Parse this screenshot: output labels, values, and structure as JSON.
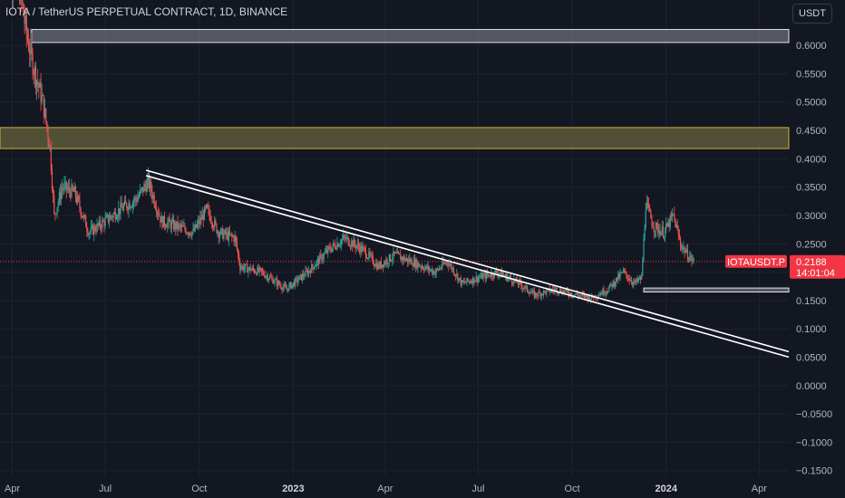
{
  "header": {
    "title": "IOTA / TetherUS PERPETUAL CONTRACT, 1D, BINANCE",
    "currency": "USDT"
  },
  "colors": {
    "background": "#131722",
    "grid": "#1f2330",
    "up": "#26a69a",
    "down": "#ef5350",
    "price_label": "#f23645",
    "resistance_zone_fill": "#5d5a3a",
    "resistance_zone_border": "#c9b33a",
    "grey_zone": "#8a8d96"
  },
  "price_label": {
    "symbol": "IOTAUSDT.P",
    "price": "0.2188",
    "countdown": "14:01:04"
  },
  "chart_data": {
    "type": "candlestick",
    "y_axis_labels": [
      "0.6000",
      "0.5500",
      "0.5000",
      "0.4500",
      "0.4000",
      "0.3500",
      "0.3000",
      "0.2500",
      "0.2000",
      "0.1500",
      "0.1000",
      "0.0500",
      "0.0000",
      "−0.0500",
      "−0.1000",
      "−0.1500"
    ],
    "y_axis_values": [
      0.6,
      0.55,
      0.5,
      0.45,
      0.4,
      0.35,
      0.3,
      0.25,
      0.2,
      0.15,
      0.1,
      0.05,
      0.0,
      -0.05,
      -0.1,
      -0.15
    ],
    "ylim": [
      -0.16,
      0.68
    ],
    "x_axis_labels": [
      "Apr",
      "Jul",
      "Oct",
      "2023",
      "Apr",
      "Jul",
      "Oct",
      "2024",
      "Apr"
    ],
    "x_axis_bold": [
      false,
      false,
      false,
      true,
      false,
      false,
      false,
      true,
      false
    ],
    "x_axis_dates": [
      "2022-04-01",
      "2022-07-01",
      "2022-10-01",
      "2023-01-01",
      "2023-04-01",
      "2023-07-01",
      "2023-10-01",
      "2024-01-01",
      "2024-04-01"
    ],
    "xlim": [
      "2022-03-20",
      "2024-04-30"
    ],
    "last_price": 0.2188,
    "path_points": [
      [
        "2022-03-25",
        0.74
      ],
      [
        "2022-04-08",
        0.7
      ],
      [
        "2022-04-15",
        0.62
      ],
      [
        "2022-04-22",
        0.56
      ],
      [
        "2022-05-01",
        0.5
      ],
      [
        "2022-05-08",
        0.42
      ],
      [
        "2022-05-12",
        0.3
      ],
      [
        "2022-05-20",
        0.35
      ],
      [
        "2022-06-01",
        0.34
      ],
      [
        "2022-06-15",
        0.27
      ],
      [
        "2022-07-01",
        0.29
      ],
      [
        "2022-07-15",
        0.31
      ],
      [
        "2022-08-01",
        0.33
      ],
      [
        "2022-08-12",
        0.36
      ],
      [
        "2022-08-25",
        0.29
      ],
      [
        "2022-09-10",
        0.28
      ],
      [
        "2022-09-25",
        0.27
      ],
      [
        "2022-10-08",
        0.31
      ],
      [
        "2022-10-20",
        0.27
      ],
      [
        "2022-11-05",
        0.26
      ],
      [
        "2022-11-10",
        0.21
      ],
      [
        "2022-12-01",
        0.2
      ],
      [
        "2022-12-25",
        0.17
      ],
      [
        "2023-01-15",
        0.2
      ],
      [
        "2023-02-05",
        0.24
      ],
      [
        "2023-02-20",
        0.26
      ],
      [
        "2023-03-10",
        0.24
      ],
      [
        "2023-03-25",
        0.21
      ],
      [
        "2023-04-10",
        0.23
      ],
      [
        "2023-04-25",
        0.22
      ],
      [
        "2023-05-20",
        0.2
      ],
      [
        "2023-06-01",
        0.22
      ],
      [
        "2023-06-15",
        0.18
      ],
      [
        "2023-07-01",
        0.19
      ],
      [
        "2023-07-20",
        0.2
      ],
      [
        "2023-08-10",
        0.18
      ],
      [
        "2023-08-25",
        0.16
      ],
      [
        "2023-09-15",
        0.17
      ],
      [
        "2023-10-05",
        0.16
      ],
      [
        "2023-10-20",
        0.155
      ],
      [
        "2023-11-05",
        0.17
      ],
      [
        "2023-11-20",
        0.2
      ],
      [
        "2023-12-01",
        0.18
      ],
      [
        "2023-12-08",
        0.19
      ],
      [
        "2023-12-12",
        0.32
      ],
      [
        "2023-12-20",
        0.28
      ],
      [
        "2023-12-30",
        0.27
      ],
      [
        "2024-01-08",
        0.3
      ],
      [
        "2024-01-15",
        0.25
      ],
      [
        "2024-01-22",
        0.23
      ],
      [
        "2024-01-28",
        0.2188
      ]
    ],
    "zones": [
      {
        "name": "grey-top-zone",
        "start": "2022-04-20",
        "end": "2024-04-30",
        "low": 0.605,
        "high": 0.628,
        "color": "grey"
      },
      {
        "name": "resistance-zone",
        "start": "2022-03-20",
        "end": "2024-04-30",
        "low": 0.418,
        "high": 0.455,
        "color": "yellow"
      },
      {
        "name": "grey-bottom-zone",
        "start": "2023-12-10",
        "end": "2024-04-30",
        "low": 0.165,
        "high": 0.172,
        "color": "grey"
      }
    ],
    "trendline": {
      "start": [
        "2022-08-10",
        0.375
      ],
      "end": [
        "2024-04-30",
        0.055
      ]
    },
    "grid": true
  }
}
